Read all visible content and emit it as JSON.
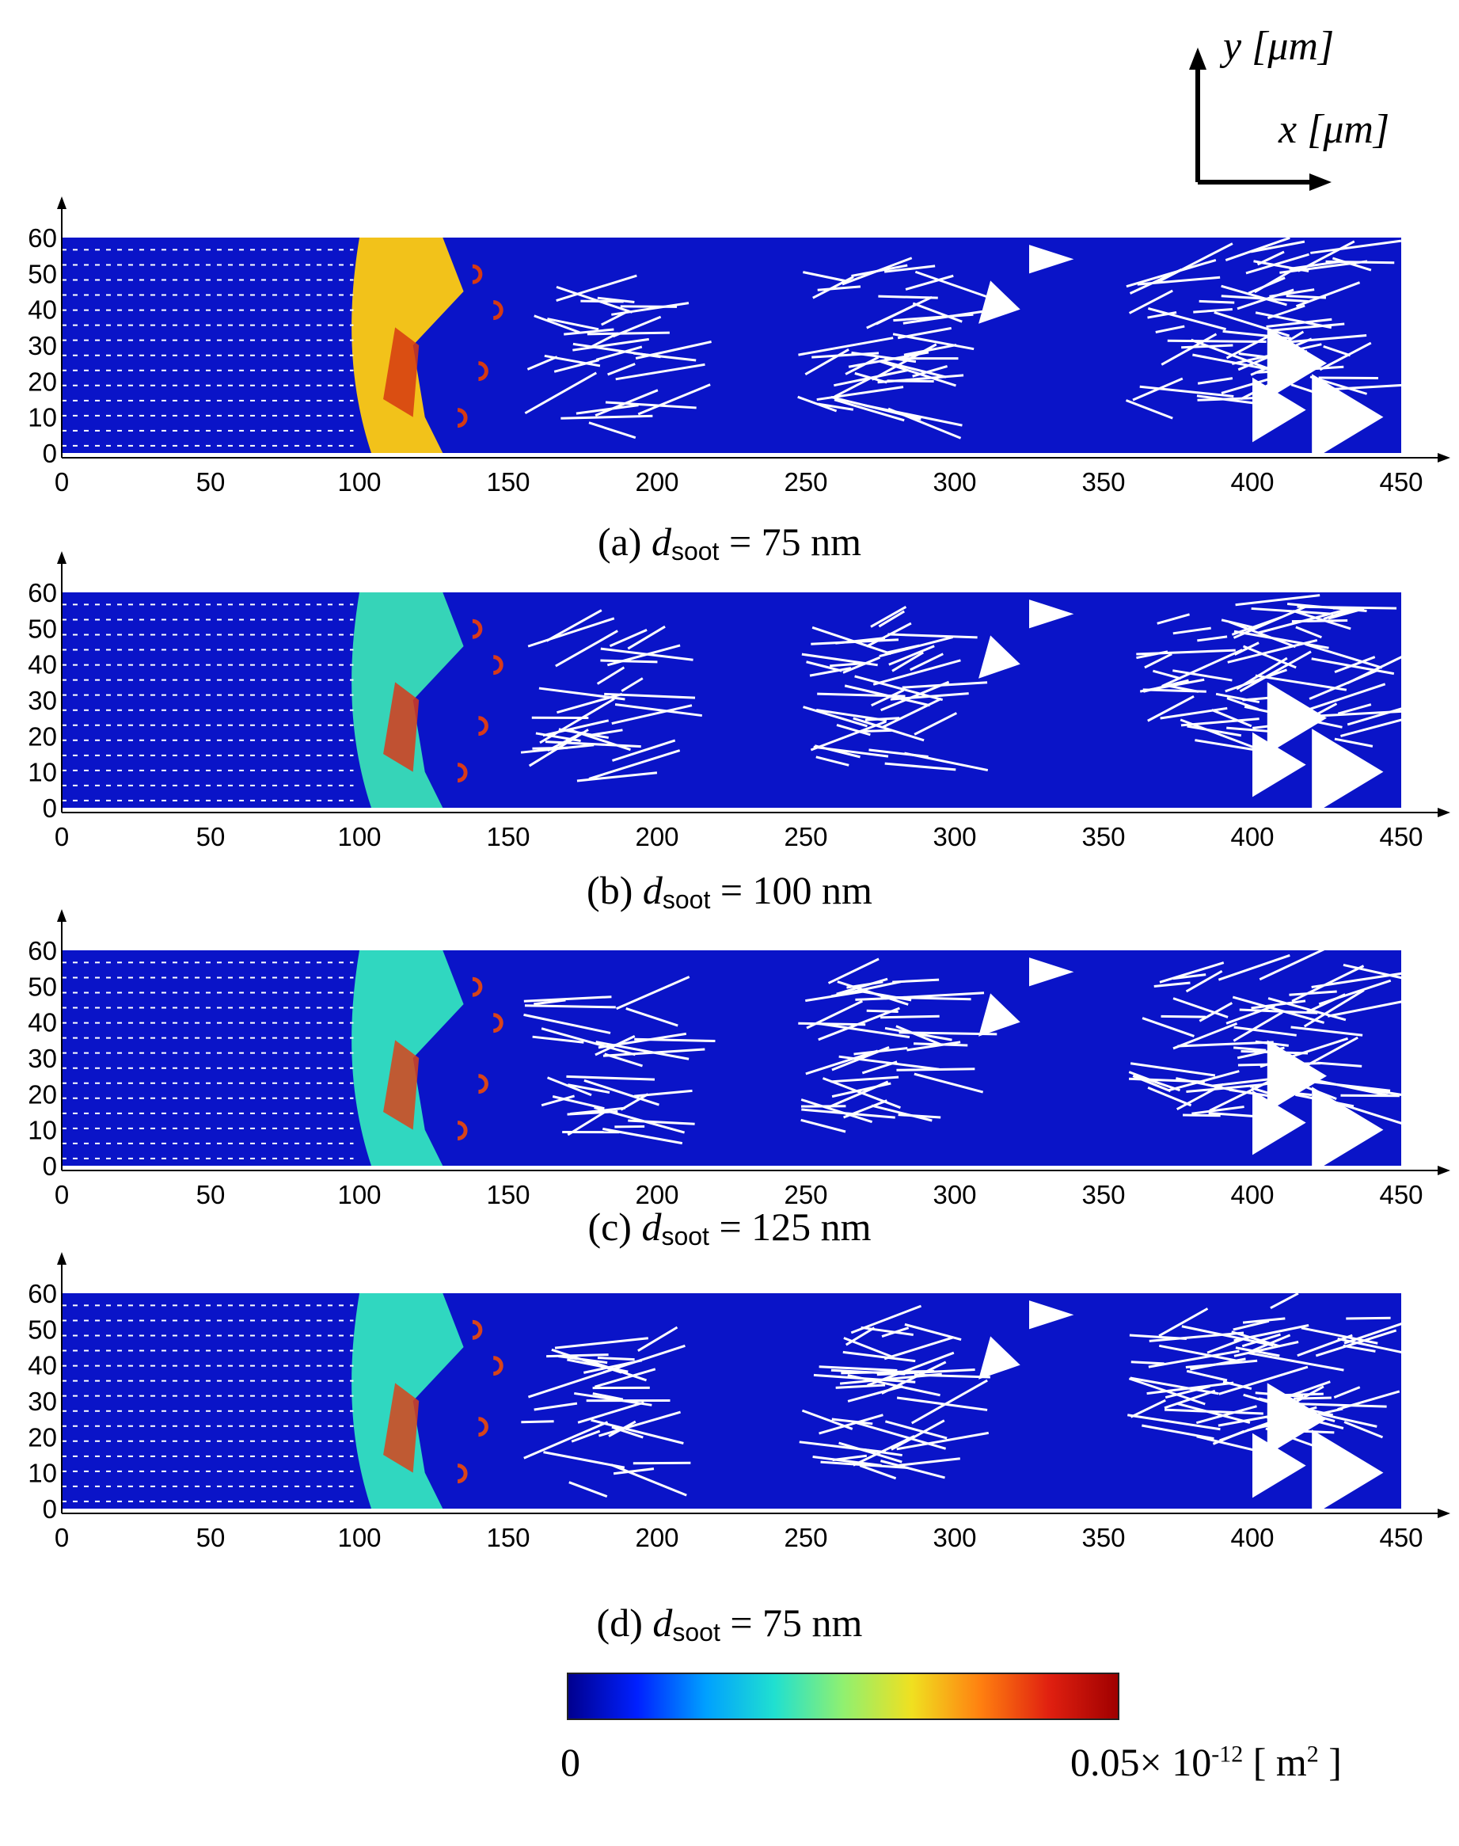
{
  "axes_key": {
    "y_label": "y [μm]",
    "x_label": "x [μm]"
  },
  "chart_data": [
    {
      "type": "heatmap",
      "label": "(a)",
      "caption_var": "d",
      "caption_sub": "soot",
      "caption_rest": " = 75 nm",
      "x_ticks": [
        0,
        50,
        100,
        150,
        200,
        250,
        300,
        350,
        400,
        450
      ],
      "y_ticks": [
        0,
        10,
        20,
        30,
        40,
        50,
        60
      ],
      "xlim": [
        0,
        450
      ],
      "ylim": [
        0,
        60
      ],
      "front_color": "#f2c21a",
      "edge_color": "#d63a12"
    },
    {
      "type": "heatmap",
      "label": "(b)",
      "caption_var": "d",
      "caption_sub": "soot",
      "caption_rest": " = 100 nm",
      "x_ticks": [
        0,
        50,
        100,
        150,
        200,
        250,
        300,
        350,
        400,
        450
      ],
      "y_ticks": [
        0,
        10,
        20,
        30,
        40,
        50,
        60
      ],
      "xlim": [
        0,
        450
      ],
      "ylim": [
        0,
        60
      ],
      "front_color": "#36d4b8",
      "edge_color": "#d83a1a"
    },
    {
      "type": "heatmap",
      "label": "(c)",
      "caption_var": "d",
      "caption_sub": "soot",
      "caption_rest": " = 125 nm",
      "x_ticks": [
        0,
        50,
        100,
        150,
        200,
        250,
        300,
        350,
        400,
        450
      ],
      "y_ticks": [
        0,
        10,
        20,
        30,
        40,
        50,
        60
      ],
      "xlim": [
        0,
        450
      ],
      "ylim": [
        0,
        60
      ],
      "front_color": "#30d7c0",
      "edge_color": "#d8441a"
    },
    {
      "type": "heatmap",
      "label": "(d)",
      "caption_var": "d",
      "caption_sub": "soot",
      "caption_rest": " = 75 nm",
      "x_ticks": [
        0,
        50,
        100,
        150,
        200,
        250,
        300,
        350,
        400,
        450
      ],
      "y_ticks": [
        0,
        10,
        20,
        30,
        40,
        50,
        60
      ],
      "xlim": [
        0,
        450
      ],
      "ylim": [
        0,
        60
      ],
      "front_color": "#30d7c0",
      "edge_color": "#d8441a"
    }
  ],
  "colorbar": {
    "min_label": "0",
    "max_label": "0.05",
    "exponent_text": "× 10",
    "exponent": "-12",
    "unit": "[ m",
    "unit_power": "2",
    "unit_close": " ]",
    "colors": [
      "#00008f",
      "#0020ff",
      "#00a0ff",
      "#20e0d0",
      "#90f070",
      "#f0e020",
      "#ff8010",
      "#e02010",
      "#a00000"
    ]
  },
  "colors": {
    "field_blue": "#0a14c8",
    "vector": "#ffffff"
  }
}
